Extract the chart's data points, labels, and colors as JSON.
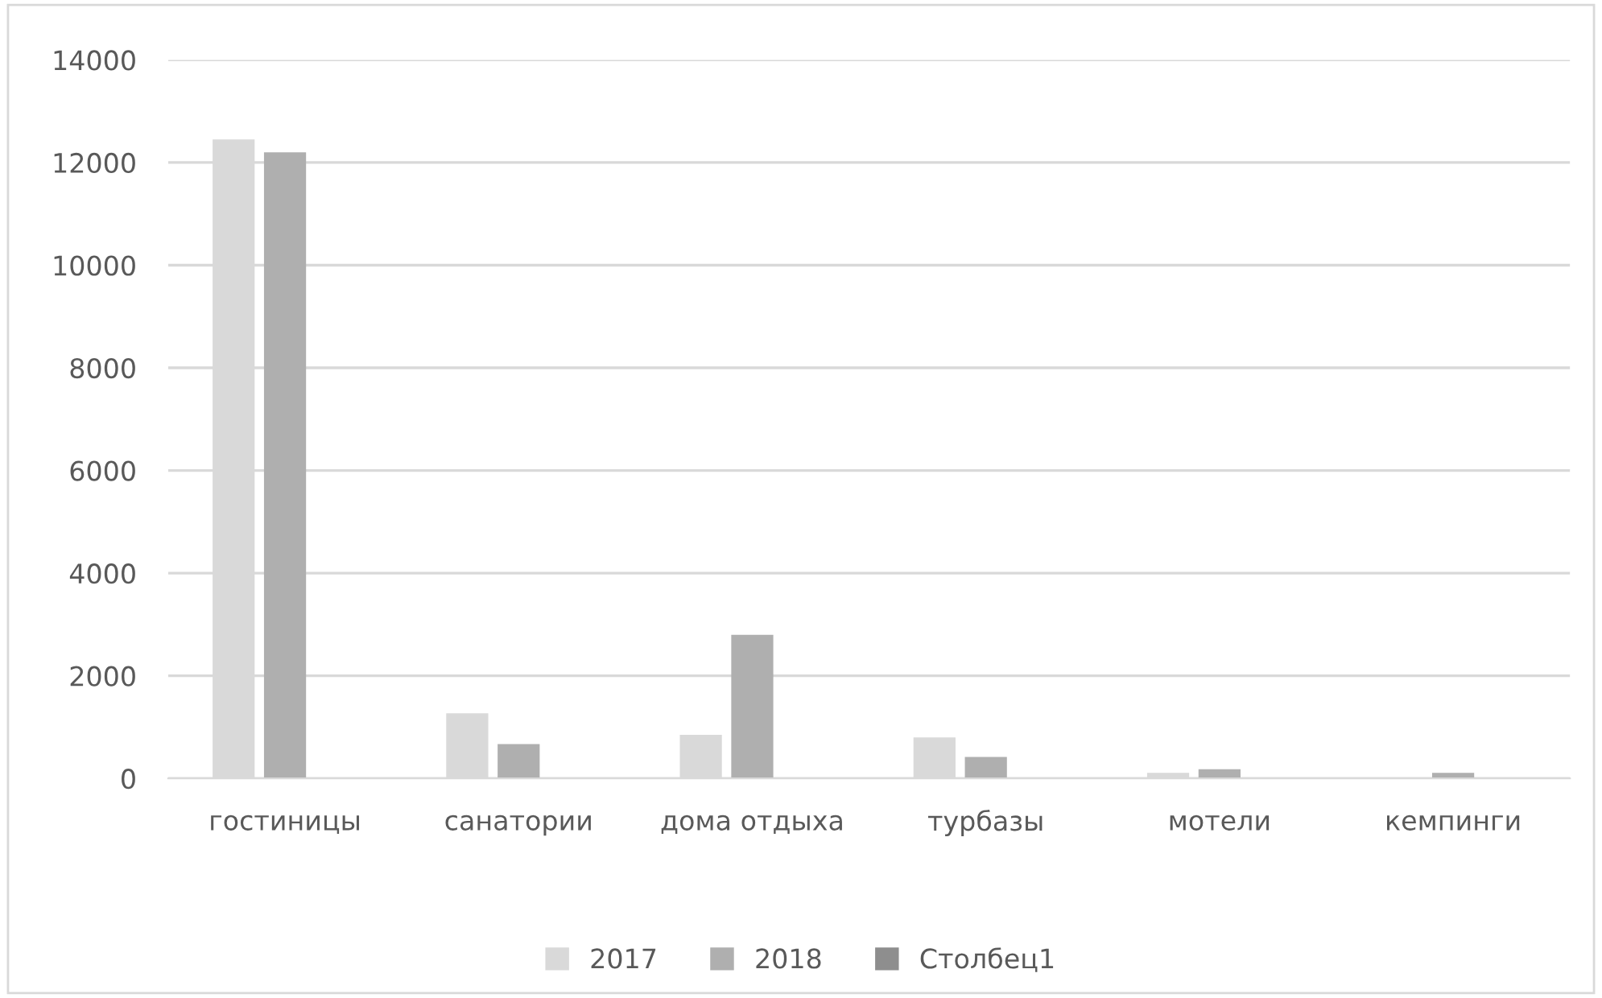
{
  "chart_data": {
    "type": "bar",
    "categories": [
      "гостиницы",
      "санатории",
      "дома отдыха",
      "турбазы",
      "мотели",
      "кемпинги"
    ],
    "series": [
      {
        "name": "2017",
        "color": "#d9d9d9",
        "values": [
          12450,
          1270,
          850,
          800,
          110,
          null
        ]
      },
      {
        "name": "2018",
        "color": "#afafaf",
        "values": [
          12200,
          670,
          2800,
          420,
          180,
          110
        ]
      },
      {
        "name": "Столбец1",
        "color": "#8e8e8e",
        "values": [
          null,
          null,
          null,
          null,
          null,
          null
        ]
      }
    ],
    "ylim": [
      0,
      14000
    ],
    "yticks": [
      0,
      2000,
      4000,
      6000,
      8000,
      10000,
      12000,
      14000
    ],
    "grid": "y",
    "legend": "bottom"
  }
}
